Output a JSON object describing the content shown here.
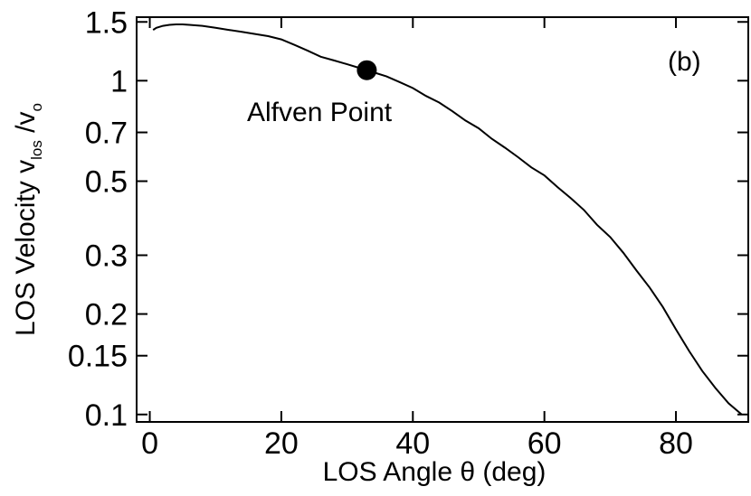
{
  "chart_data": {
    "type": "line",
    "title": "",
    "xlabel": "LOS Angle θ (deg)",
    "ylabel": {
      "prefix": "LOS Velocity  v",
      "sub1": "los",
      "mid": " /v",
      "sub2": "o"
    },
    "xlim": [
      -2,
      91
    ],
    "ylim": [
      0.095,
      1.55
    ],
    "yscale": "log",
    "grid": false,
    "xticks": [
      0,
      20,
      40,
      60,
      80
    ],
    "xtick_labels": [
      "0",
      "20",
      "40",
      "60",
      "80"
    ],
    "yticks": [
      0.1,
      0.15,
      0.2,
      0.3,
      0.5,
      0.7,
      1,
      1.5
    ],
    "ytick_labels": [
      "0.1",
      "0.15",
      "0.2",
      "0.3",
      "0.5",
      "0.7",
      "1",
      "1.5"
    ],
    "series": [
      {
        "x": [
          0.5,
          1,
          2,
          3,
          4,
          5,
          6,
          8,
          10,
          12,
          14,
          16,
          18,
          20,
          22,
          24,
          26,
          28,
          30,
          32,
          34,
          36,
          38,
          40,
          42,
          44,
          46,
          48,
          50,
          52,
          54,
          56,
          58,
          60,
          62,
          64,
          66,
          68,
          70,
          72,
          74,
          76,
          78,
          80,
          82,
          84,
          86,
          88,
          90
        ],
        "values": [
          1.42,
          1.44,
          1.46,
          1.47,
          1.475,
          1.475,
          1.47,
          1.46,
          1.44,
          1.42,
          1.4,
          1.38,
          1.36,
          1.33,
          1.28,
          1.23,
          1.18,
          1.15,
          1.12,
          1.09,
          1.06,
          1.03,
          0.99,
          0.95,
          0.9,
          0.86,
          0.81,
          0.76,
          0.72,
          0.67,
          0.63,
          0.59,
          0.55,
          0.52,
          0.48,
          0.445,
          0.41,
          0.37,
          0.34,
          0.305,
          0.27,
          0.24,
          0.21,
          0.18,
          0.155,
          0.135,
          0.12,
          0.108,
          0.1
        ]
      }
    ],
    "marker": {
      "x": 33,
      "y": 1.075,
      "label": "Alfven Point"
    },
    "panel_label": "(b)"
  }
}
